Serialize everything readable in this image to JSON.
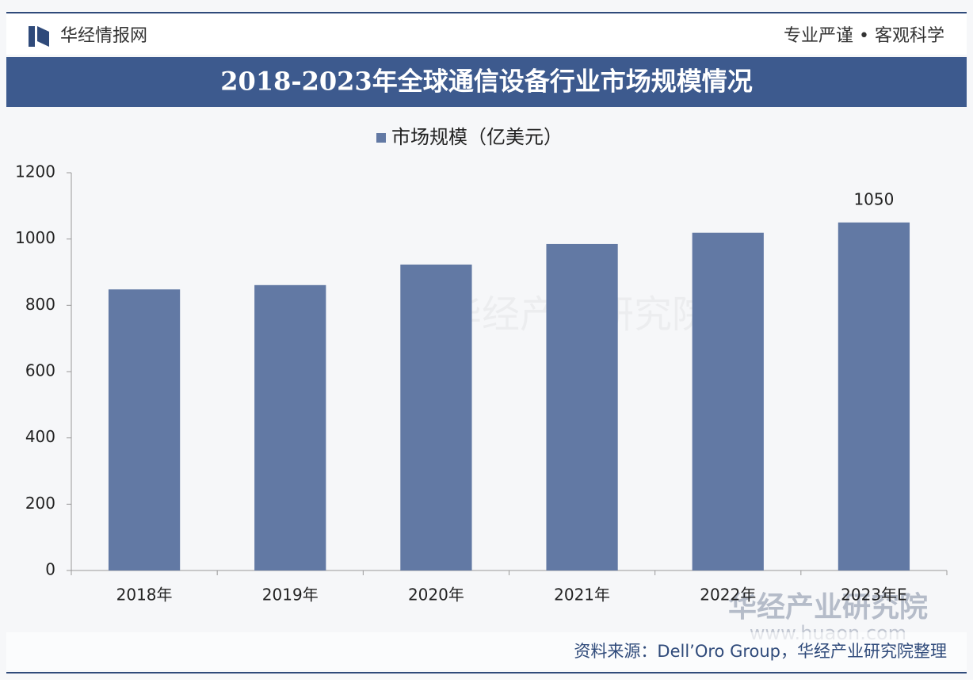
{
  "header": {
    "brand": "华经情报网",
    "slogan": "专业严谨 • 客观科学"
  },
  "chart_data": {
    "type": "bar",
    "title": "2018-2023年全球通信设备行业市场规模情况",
    "categories": [
      "2018年",
      "2019年",
      "2020年",
      "2021年",
      "2022年",
      "2023年E"
    ],
    "series": [
      {
        "name": "市场规模（亿美元）",
        "color": "#6279a4",
        "values": [
          848,
          861,
          923,
          985,
          1019,
          1050
        ],
        "value_labels": [
          null,
          null,
          null,
          null,
          null,
          "1050"
        ]
      }
    ],
    "ylim": [
      0,
      1200
    ],
    "yticks": [
      0,
      200,
      400,
      600,
      800,
      1000,
      1200
    ],
    "grid": false,
    "legend": "top"
  },
  "footer": {
    "source": "资料来源：Dell’Oro Group，华经产业研究院整理"
  },
  "watermark": {
    "name": "华经产业研究院",
    "url": "www.huaon.com"
  }
}
